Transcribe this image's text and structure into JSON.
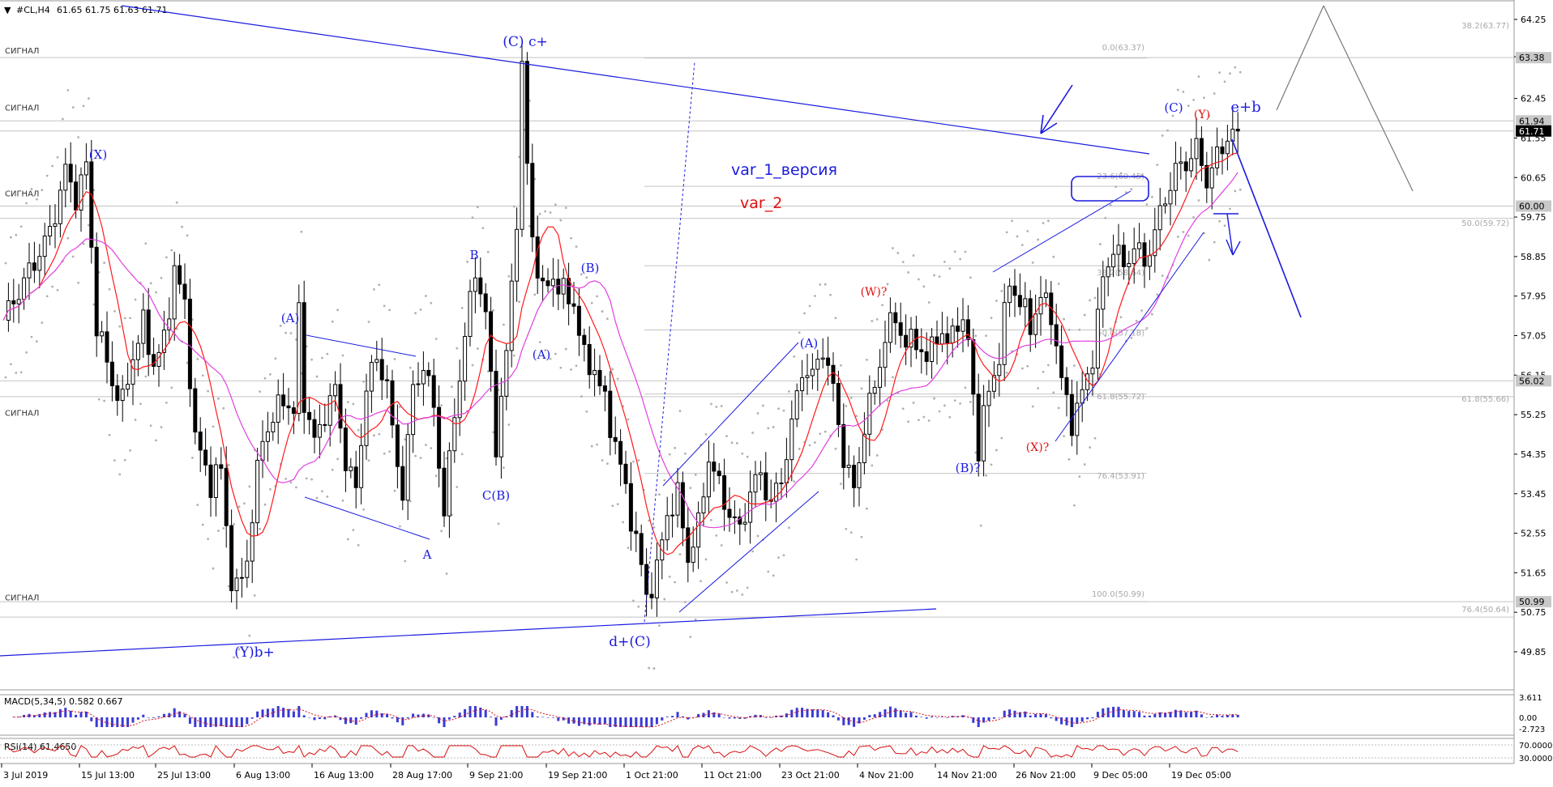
{
  "header": {
    "symbol": "#CL,H4",
    "ohlc": "61.65 61.75 61.63 61.71"
  },
  "signal_label": "СИГНАЛ",
  "indicators": {
    "macd": "MACD(5,34,5) 0.582 0.667",
    "rsi": "RSI(14) 61.4650"
  },
  "colors": {
    "wave_blue": "#1a1adf",
    "wave_red": "#e01010",
    "candle": "#000000",
    "ma_red": "#ff1a1a",
    "ma_magenta": "#e040e0",
    "envelope": "#b0b0b0",
    "fib": "#b8b8b8",
    "rsi_line": "#d81010",
    "macd_hist": "#3a3ad6"
  },
  "chart_data": {
    "type": "candlestick",
    "instrument": "#CL",
    "timeframe": "H4",
    "ylim": [
      49.35,
      64.9
    ],
    "y_ticks": [
      "64.25",
      "63.40",
      "62.45",
      "61.55",
      "60.65",
      "59.75",
      "58.85",
      "57.95",
      "57.05",
      "56.15",
      "55.25",
      "54.35",
      "53.45",
      "52.55",
      "51.65",
      "50.75",
      "49.85"
    ],
    "x_ticks": [
      "3 Jul 2019",
      "15 Jul 13:00",
      "25 Jul 13:00",
      "6 Aug 13:00",
      "16 Aug 13:00",
      "28 Aug 17:00",
      "9 Sep 21:00",
      "19 Sep 21:00",
      "1 Oct 21:00",
      "11 Oct 21:00",
      "23 Oct 21:00",
      "4 Nov 21:00",
      "14 Nov 21:00",
      "26 Nov 21:00",
      "9 Dec 05:00",
      "19 Dec 05:00"
    ],
    "price_badges": [
      {
        "value": "63.38",
        "style": "grey"
      },
      {
        "value": "61.94",
        "style": "grey"
      },
      {
        "value": "61.71",
        "style": "black"
      },
      {
        "value": "60.00",
        "style": "grey"
      },
      {
        "value": "56.02",
        "style": "grey"
      },
      {
        "value": "50.99",
        "style": "grey"
      }
    ],
    "horizontal_levels": [
      63.38,
      61.94,
      61.71,
      60.0,
      59.72,
      55.66,
      56.02,
      50.99,
      50.64
    ],
    "fib_labels": [
      "38.2(63.77)",
      "0.0(63.37)",
      "23.6(60.45)",
      "50.0(59.72)",
      "38.2(58.64)",
      "50.0(57.18)",
      "61.8(55.72)",
      "61.8(55.66)",
      "76.4(53.91)",
      "100.0(50.99)",
      "76.4(50.64)"
    ],
    "wave_labels": [
      {
        "text": "(X)",
        "color": "blue"
      },
      {
        "text": "(Y)b+",
        "color": "blue"
      },
      {
        "text": "(A)",
        "color": "blue"
      },
      {
        "text": "A",
        "color": "blue"
      },
      {
        "text": "B",
        "color": "blue"
      },
      {
        "text": "C(B)",
        "color": "blue"
      },
      {
        "text": "(C) c+",
        "color": "blue"
      },
      {
        "text": "(A)",
        "color": "blue"
      },
      {
        "text": "(B)",
        "color": "blue"
      },
      {
        "text": "d+(C)",
        "color": "blue"
      },
      {
        "text": "(A)",
        "color": "blue"
      },
      {
        "text": "(W)?",
        "color": "red"
      },
      {
        "text": "(B)?",
        "color": "blue"
      },
      {
        "text": "(X)?",
        "color": "red"
      },
      {
        "text": "(C)",
        "color": "blue"
      },
      {
        "text": "(Y)",
        "color": "red"
      },
      {
        "text": "e+b",
        "color": "blue"
      }
    ],
    "annotations": [
      {
        "text": "var_1_версия",
        "color": "blue"
      },
      {
        "text": "var_2",
        "color": "red"
      }
    ],
    "macd": {
      "label": "MACD(5,34,5) 0.582 0.667",
      "ticks": [
        "3.611",
        "0.00",
        "-2.723"
      ],
      "value": 0.582,
      "signal": 0.667
    },
    "rsi": {
      "label": "RSI(14) 61.4650",
      "ticks": [
        "70.0000",
        "30.0000"
      ],
      "value": 61.465
    },
    "price_path": [
      [
        0,
        57.4
      ],
      [
        5,
        58.5
      ],
      [
        9,
        59.4
      ],
      [
        12,
        60.8
      ],
      [
        14,
        60.2
      ],
      [
        16,
        60.9
      ],
      [
        18,
        57.3
      ],
      [
        21,
        56.0
      ],
      [
        23,
        55.5
      ],
      [
        25,
        56.6
      ],
      [
        27,
        57.3
      ],
      [
        29,
        56.4
      ],
      [
        31,
        56.9
      ],
      [
        33,
        58.6
      ],
      [
        35,
        57.7
      ],
      [
        37,
        54.7
      ],
      [
        40,
        53.7
      ],
      [
        42,
        54.0
      ],
      [
        44,
        51.5
      ],
      [
        45,
        51.2
      ],
      [
        47,
        52.0
      ],
      [
        50,
        54.8
      ],
      [
        52,
        55.1
      ],
      [
        54,
        55.7
      ],
      [
        56,
        55.2
      ],
      [
        57,
        57.6
      ],
      [
        58,
        55.6
      ],
      [
        60,
        54.6
      ],
      [
        62,
        55.3
      ],
      [
        64,
        55.8
      ],
      [
        66,
        54.2
      ],
      [
        68,
        53.5
      ],
      [
        70,
        55.9
      ],
      [
        72,
        56.5
      ],
      [
        74,
        56.0
      ],
      [
        75,
        54.8
      ],
      [
        77,
        53.5
      ],
      [
        79,
        55.8
      ],
      [
        81,
        56.4
      ],
      [
        83,
        55.4
      ],
      [
        85,
        53.0
      ],
      [
        87,
        55.3
      ],
      [
        89,
        57.0
      ],
      [
        91,
        58.6
      ],
      [
        93,
        57.5
      ],
      [
        95,
        54.6
      ],
      [
        97,
        56.6
      ],
      [
        99,
        59.8
      ],
      [
        100,
        63.1
      ],
      [
        101,
        60.9
      ],
      [
        102,
        59.3
      ],
      [
        104,
        58.0
      ],
      [
        106,
        58.4
      ],
      [
        108,
        58.0
      ],
      [
        110,
        57.8
      ],
      [
        112,
        56.5
      ],
      [
        114,
        56.3
      ],
      [
        116,
        55.5
      ],
      [
        118,
        54.6
      ],
      [
        120,
        53.5
      ],
      [
        122,
        52.4
      ],
      [
        124,
        51.1
      ],
      [
        126,
        51.7
      ],
      [
        128,
        53.0
      ],
      [
        130,
        53.4
      ],
      [
        132,
        52.0
      ],
      [
        134,
        52.7
      ],
      [
        136,
        54.3
      ],
      [
        138,
        53.6
      ],
      [
        140,
        53.0
      ],
      [
        142,
        52.6
      ],
      [
        144,
        53.5
      ],
      [
        146,
        53.9
      ],
      [
        148,
        53.2
      ],
      [
        150,
        53.8
      ],
      [
        152,
        55.0
      ],
      [
        154,
        56.3
      ],
      [
        156,
        56.1
      ],
      [
        158,
        56.8
      ],
      [
        160,
        55.8
      ],
      [
        162,
        54.3
      ],
      [
        164,
        53.5
      ],
      [
        166,
        55.0
      ],
      [
        168,
        55.9
      ],
      [
        170,
        57.0
      ],
      [
        172,
        57.5
      ],
      [
        174,
        56.8
      ],
      [
        176,
        57.0
      ],
      [
        178,
        56.4
      ],
      [
        180,
        57.2
      ],
      [
        182,
        56.8
      ],
      [
        184,
        57.5
      ],
      [
        186,
        56.9
      ],
      [
        188,
        54.5
      ],
      [
        190,
        55.8
      ],
      [
        192,
        56.6
      ],
      [
        194,
        58.3
      ],
      [
        196,
        57.8
      ],
      [
        198,
        57.3
      ],
      [
        200,
        57.9
      ],
      [
        202,
        57.6
      ],
      [
        204,
        56.0
      ],
      [
        206,
        55.1
      ],
      [
        208,
        55.7
      ],
      [
        210,
        56.6
      ],
      [
        212,
        58.3
      ],
      [
        214,
        59.1
      ],
      [
        216,
        58.6
      ],
      [
        218,
        59.1
      ],
      [
        220,
        58.7
      ],
      [
        222,
        59.4
      ],
      [
        224,
        60.2
      ],
      [
        226,
        60.8
      ],
      [
        228,
        61.0
      ],
      [
        230,
        61.3
      ],
      [
        232,
        60.6
      ],
      [
        234,
        61.1
      ],
      [
        236,
        61.6
      ],
      [
        238,
        61.71
      ]
    ]
  }
}
